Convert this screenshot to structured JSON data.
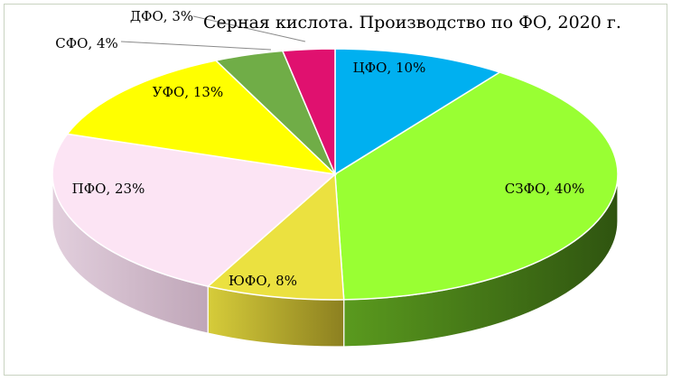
{
  "chart_data": {
    "type": "pie",
    "title": "Серная кислота. Производство по ФО, 2020 г.",
    "three_d": true,
    "slices": [
      {
        "label": "ЦФО",
        "value": 10,
        "display": "ЦФО, 10%",
        "color": "#00b0f0",
        "side": "#0079a8"
      },
      {
        "label": "СЗФО",
        "value": 40,
        "display": "СЗФО, 40%",
        "color": "#99ff33",
        "side": "#3d6a14"
      },
      {
        "label": "ЮФО",
        "value": 8,
        "display": "ЮФО, 8%",
        "color": "#ebe140",
        "side": "#9a8c1f"
      },
      {
        "label": "ПФО",
        "value": 23,
        "display": "ПФО, 23%",
        "color": "#fce4f4",
        "side": "#b89fb0"
      },
      {
        "label": "УФО",
        "value": 13,
        "display": "УФО, 13%",
        "color": "#ffff00",
        "side": "#b3b300"
      },
      {
        "label": "СФО",
        "value": 4,
        "display": "СФО, 4%",
        "color": "#70ad47",
        "side": "#4a7a2e"
      },
      {
        "label": "ДФО",
        "value": 3,
        "display": "ДФО, 3%",
        "color": "#e0116f",
        "side": "#8f0a47"
      }
    ],
    "legend": "none"
  }
}
